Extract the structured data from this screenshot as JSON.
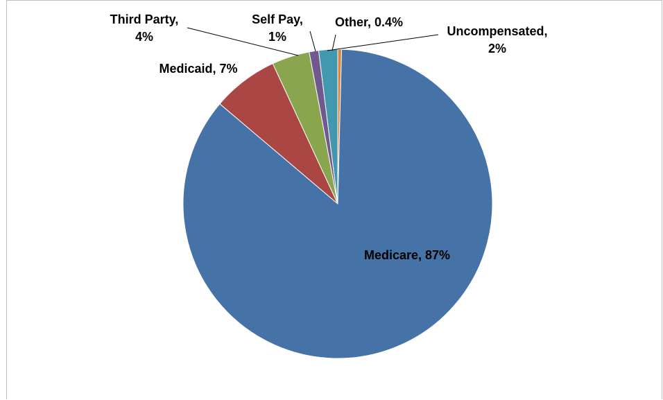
{
  "chart_data": {
    "type": "pie",
    "title": "",
    "categories": [
      "Medicare",
      "Medicaid",
      "Third Party",
      "Self Pay",
      "Other",
      "Uncompensated"
    ],
    "values": [
      87,
      7,
      4,
      1,
      0.4,
      2
    ],
    "render_order": [
      "Other",
      "Medicare",
      "Medicaid",
      "Third Party",
      "Self Pay",
      "Uncompensated"
    ],
    "colors": {
      "Medicare": "#4572A7",
      "Medicaid": "#AA4643",
      "Third Party": "#89A54E",
      "Self Pay": "#71588F",
      "Uncompensated": "#4198AF",
      "Other": "#DB843D"
    },
    "labels": {
      "Medicare": [
        "Medicare, 87%"
      ],
      "Medicaid": [
        "Medicaid, 7%"
      ],
      "Third Party": [
        "Third Party,",
        "4%"
      ],
      "Self Pay": [
        "Self Pay,",
        "1%"
      ],
      "Other": [
        "Other, 0.4%"
      ],
      "Uncompensated": [
        "Uncompensated,",
        "2%"
      ]
    },
    "legend": "none",
    "grid": false
  }
}
